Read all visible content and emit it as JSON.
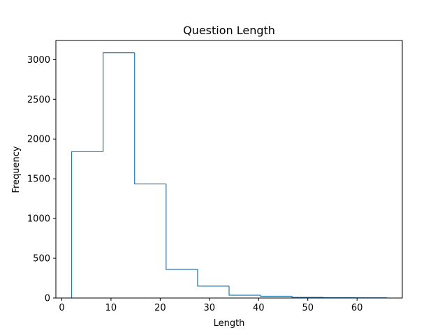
{
  "chart_data": {
    "type": "bar",
    "histtype": "step",
    "title": "Question Length",
    "xlabel": "Length",
    "ylabel": "Frequency",
    "xlim": [
      -1.2,
      69.2
    ],
    "ylim": [
      0,
      3240
    ],
    "xticks": [
      0,
      10,
      20,
      30,
      40,
      50,
      60
    ],
    "yticks": [
      0,
      500,
      1000,
      1500,
      2000,
      2500,
      3000
    ],
    "bin_edges": [
      2.0,
      8.4,
      14.8,
      21.2,
      27.6,
      34.0,
      40.4,
      46.8,
      53.2,
      59.6,
      66.0
    ],
    "values": [
      1840,
      3085,
      1435,
      360,
      150,
      35,
      22,
      8,
      4,
      2
    ],
    "grid": false,
    "color": "#1f77b4"
  }
}
